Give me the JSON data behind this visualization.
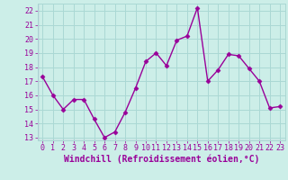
{
  "x": [
    0,
    1,
    2,
    3,
    4,
    5,
    6,
    7,
    8,
    9,
    10,
    11,
    12,
    13,
    14,
    15,
    16,
    17,
    18,
    19,
    20,
    21,
    22,
    23
  ],
  "y": [
    17.3,
    16.0,
    15.0,
    15.7,
    15.7,
    14.3,
    13.0,
    13.4,
    14.8,
    16.5,
    18.4,
    19.0,
    18.1,
    19.9,
    20.2,
    22.2,
    17.0,
    17.8,
    18.9,
    18.8,
    17.9,
    17.0,
    15.1,
    15.2
  ],
  "line_color": "#990099",
  "marker": "D",
  "marker_size": 2.5,
  "bg_color": "#cceee8",
  "grid_color": "#aad8d4",
  "xlabel": "Windchill (Refroidissement éolien,°C)",
  "xlabel_color": "#990099",
  "ylim_min": 12.8,
  "ylim_max": 22.5,
  "yticks": [
    13,
    14,
    15,
    16,
    17,
    18,
    19,
    20,
    21,
    22
  ],
  "xticks": [
    0,
    1,
    2,
    3,
    4,
    5,
    6,
    7,
    8,
    9,
    10,
    11,
    12,
    13,
    14,
    15,
    16,
    17,
    18,
    19,
    20,
    21,
    22,
    23
  ],
  "tick_color": "#990099",
  "tick_fontsize": 6,
  "xlabel_fontsize": 7,
  "linewidth": 1.0
}
